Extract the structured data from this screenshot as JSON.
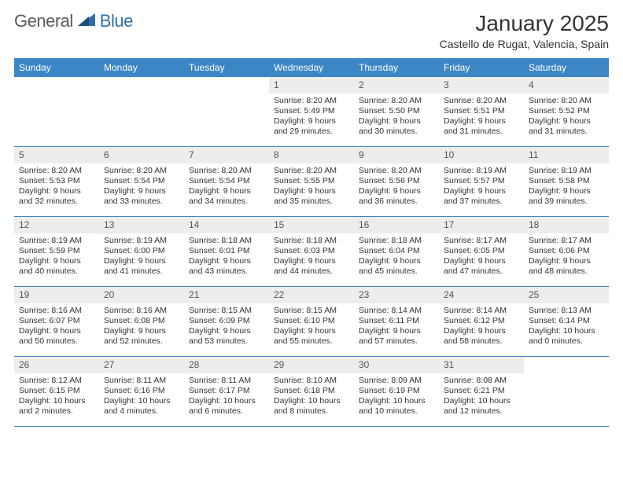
{
  "logo": {
    "general": "General",
    "blue": "Blue"
  },
  "title": "January 2025",
  "location": "Castello de Rugat, Valencia, Spain",
  "colors": {
    "header_bg": "#3d86c6",
    "header_text": "#ffffff",
    "daynum_bg": "#ededed",
    "border": "#3d86c6",
    "text": "#333333",
    "logo_gray": "#5b5b5b",
    "logo_blue": "#2f6fa8"
  },
  "weekdays": [
    "Sunday",
    "Monday",
    "Tuesday",
    "Wednesday",
    "Thursday",
    "Friday",
    "Saturday"
  ],
  "weeks": [
    [
      {
        "empty": true
      },
      {
        "empty": true
      },
      {
        "empty": true
      },
      {
        "day": "1",
        "sunrise": "8:20 AM",
        "sunset": "5:49 PM",
        "daylight": "9 hours and 29 minutes."
      },
      {
        "day": "2",
        "sunrise": "8:20 AM",
        "sunset": "5:50 PM",
        "daylight": "9 hours and 30 minutes."
      },
      {
        "day": "3",
        "sunrise": "8:20 AM",
        "sunset": "5:51 PM",
        "daylight": "9 hours and 31 minutes."
      },
      {
        "day": "4",
        "sunrise": "8:20 AM",
        "sunset": "5:52 PM",
        "daylight": "9 hours and 31 minutes."
      }
    ],
    [
      {
        "day": "5",
        "sunrise": "8:20 AM",
        "sunset": "5:53 PM",
        "daylight": "9 hours and 32 minutes."
      },
      {
        "day": "6",
        "sunrise": "8:20 AM",
        "sunset": "5:54 PM",
        "daylight": "9 hours and 33 minutes."
      },
      {
        "day": "7",
        "sunrise": "8:20 AM",
        "sunset": "5:54 PM",
        "daylight": "9 hours and 34 minutes."
      },
      {
        "day": "8",
        "sunrise": "8:20 AM",
        "sunset": "5:55 PM",
        "daylight": "9 hours and 35 minutes."
      },
      {
        "day": "9",
        "sunrise": "8:20 AM",
        "sunset": "5:56 PM",
        "daylight": "9 hours and 36 minutes."
      },
      {
        "day": "10",
        "sunrise": "8:19 AM",
        "sunset": "5:57 PM",
        "daylight": "9 hours and 37 minutes."
      },
      {
        "day": "11",
        "sunrise": "8:19 AM",
        "sunset": "5:58 PM",
        "daylight": "9 hours and 39 minutes."
      }
    ],
    [
      {
        "day": "12",
        "sunrise": "8:19 AM",
        "sunset": "5:59 PM",
        "daylight": "9 hours and 40 minutes."
      },
      {
        "day": "13",
        "sunrise": "8:19 AM",
        "sunset": "6:00 PM",
        "daylight": "9 hours and 41 minutes."
      },
      {
        "day": "14",
        "sunrise": "8:18 AM",
        "sunset": "6:01 PM",
        "daylight": "9 hours and 43 minutes."
      },
      {
        "day": "15",
        "sunrise": "8:18 AM",
        "sunset": "6:03 PM",
        "daylight": "9 hours and 44 minutes."
      },
      {
        "day": "16",
        "sunrise": "8:18 AM",
        "sunset": "6:04 PM",
        "daylight": "9 hours and 45 minutes."
      },
      {
        "day": "17",
        "sunrise": "8:17 AM",
        "sunset": "6:05 PM",
        "daylight": "9 hours and 47 minutes."
      },
      {
        "day": "18",
        "sunrise": "8:17 AM",
        "sunset": "6:06 PM",
        "daylight": "9 hours and 48 minutes."
      }
    ],
    [
      {
        "day": "19",
        "sunrise": "8:16 AM",
        "sunset": "6:07 PM",
        "daylight": "9 hours and 50 minutes."
      },
      {
        "day": "20",
        "sunrise": "8:16 AM",
        "sunset": "6:08 PM",
        "daylight": "9 hours and 52 minutes."
      },
      {
        "day": "21",
        "sunrise": "8:15 AM",
        "sunset": "6:09 PM",
        "daylight": "9 hours and 53 minutes."
      },
      {
        "day": "22",
        "sunrise": "8:15 AM",
        "sunset": "6:10 PM",
        "daylight": "9 hours and 55 minutes."
      },
      {
        "day": "23",
        "sunrise": "8:14 AM",
        "sunset": "6:11 PM",
        "daylight": "9 hours and 57 minutes."
      },
      {
        "day": "24",
        "sunrise": "8:14 AM",
        "sunset": "6:12 PM",
        "daylight": "9 hours and 58 minutes."
      },
      {
        "day": "25",
        "sunrise": "8:13 AM",
        "sunset": "6:14 PM",
        "daylight": "10 hours and 0 minutes."
      }
    ],
    [
      {
        "day": "26",
        "sunrise": "8:12 AM",
        "sunset": "6:15 PM",
        "daylight": "10 hours and 2 minutes."
      },
      {
        "day": "27",
        "sunrise": "8:11 AM",
        "sunset": "6:16 PM",
        "daylight": "10 hours and 4 minutes."
      },
      {
        "day": "28",
        "sunrise": "8:11 AM",
        "sunset": "6:17 PM",
        "daylight": "10 hours and 6 minutes."
      },
      {
        "day": "29",
        "sunrise": "8:10 AM",
        "sunset": "6:18 PM",
        "daylight": "10 hours and 8 minutes."
      },
      {
        "day": "30",
        "sunrise": "8:09 AM",
        "sunset": "6:19 PM",
        "daylight": "10 hours and 10 minutes."
      },
      {
        "day": "31",
        "sunrise": "8:08 AM",
        "sunset": "6:21 PM",
        "daylight": "10 hours and 12 minutes."
      },
      {
        "empty": true
      }
    ]
  ],
  "labels": {
    "sunrise_prefix": "Sunrise: ",
    "sunset_prefix": "Sunset: ",
    "daylight_prefix": "Daylight: "
  }
}
